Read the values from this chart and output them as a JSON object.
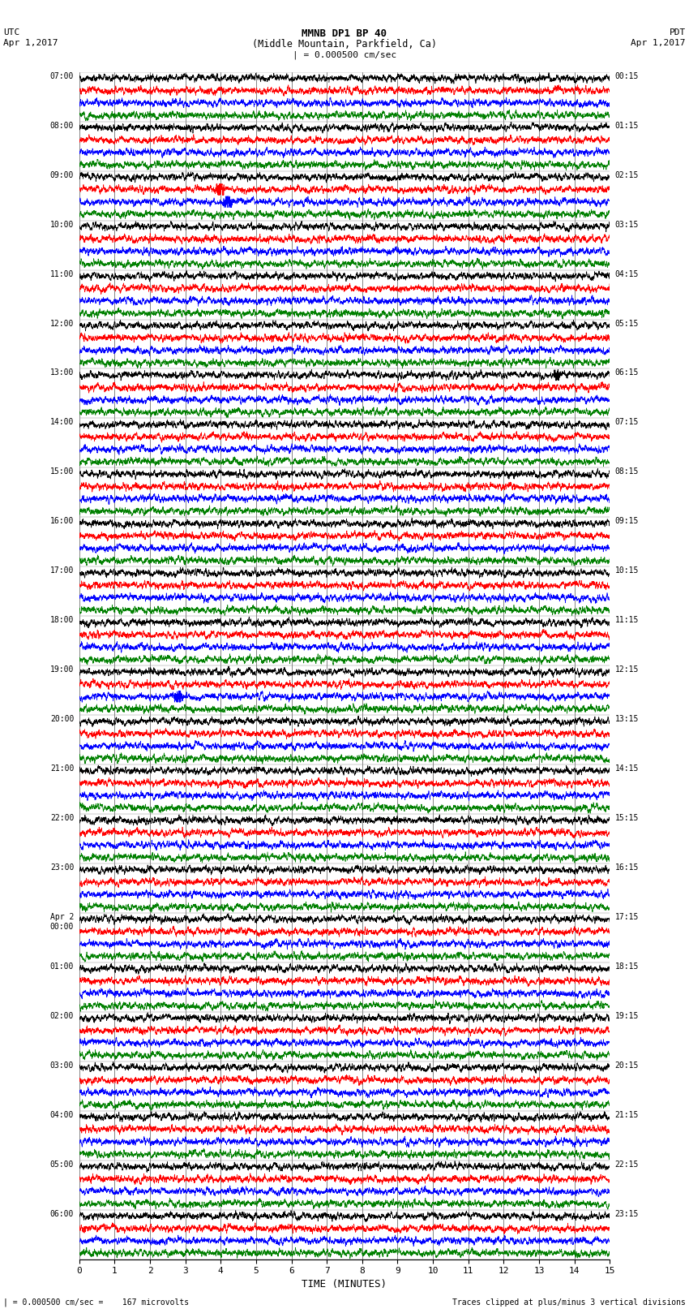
{
  "title_line1": "MMNB DP1 BP 40",
  "title_line2": "(Middle Mountain, Parkfield, Ca)",
  "scale_label": "| = 0.000500 cm/sec",
  "left_header": "UTC",
  "left_subheader": "Apr 1,2017",
  "right_header": "PDT",
  "right_subheader": "Apr 1,2017",
  "xlabel": "TIME (MINUTES)",
  "bottom_left_note": "| = 0.000500 cm/sec =    167 microvolts",
  "bottom_right_note": "Traces clipped at plus/minus 3 vertical divisions",
  "utc_times": [
    "07:00",
    "08:00",
    "09:00",
    "10:00",
    "11:00",
    "12:00",
    "13:00",
    "14:00",
    "15:00",
    "16:00",
    "17:00",
    "18:00",
    "19:00",
    "20:00",
    "21:00",
    "22:00",
    "23:00",
    "Apr 2\n00:00",
    "01:00",
    "02:00",
    "03:00",
    "04:00",
    "05:00",
    "06:00"
  ],
  "pdt_times": [
    "00:15",
    "01:15",
    "02:15",
    "03:15",
    "04:15",
    "05:15",
    "06:15",
    "07:15",
    "08:15",
    "09:15",
    "10:15",
    "11:15",
    "12:15",
    "13:15",
    "14:15",
    "15:15",
    "16:15",
    "17:15",
    "18:15",
    "19:15",
    "20:15",
    "21:15",
    "22:15",
    "23:15"
  ],
  "trace_colors": [
    "black",
    "red",
    "blue",
    "green"
  ],
  "num_rows": 24,
  "traces_per_row": 4,
  "xmin": 0,
  "xmax": 15,
  "background_color": "white",
  "noise_amp": 0.12,
  "seed": 42,
  "fig_width": 8.5,
  "fig_height": 16.13,
  "dpi": 100
}
